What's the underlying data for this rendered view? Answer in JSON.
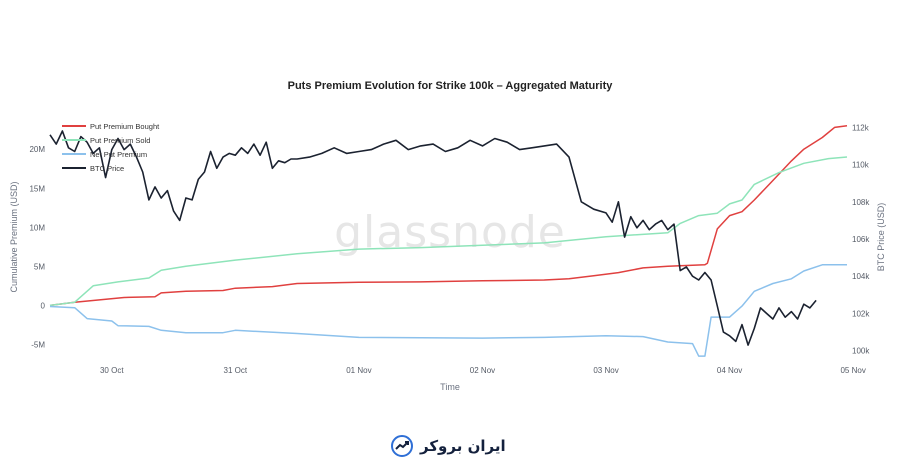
{
  "chart_data": {
    "type": "line",
    "title": "Puts Premium Evolution for Strike 100k – Aggregated Maturity",
    "xlabel": "Time",
    "ylabel_left": "Cumulative Premium (USD)",
    "ylabel_right": "BTC Price (USD)",
    "watermark": "glassnode",
    "x_range": [
      0,
      6.45
    ],
    "x_ticks": [
      {
        "x": 0.5,
        "label": "30 Oct"
      },
      {
        "x": 1.5,
        "label": "31 Oct"
      },
      {
        "x": 2.5,
        "label": "01 Nov"
      },
      {
        "x": 3.5,
        "label": "02 Nov"
      },
      {
        "x": 4.5,
        "label": "03 Nov"
      },
      {
        "x": 5.5,
        "label": "04 Nov"
      },
      {
        "x": 6.5,
        "label": "05 Nov"
      }
    ],
    "y_left_range": [
      -7000000,
      24000000
    ],
    "y_left_ticks": [
      {
        "v": -5000000,
        "label": "-5M"
      },
      {
        "v": 0,
        "label": "0"
      },
      {
        "v": 5000000,
        "label": "5M"
      },
      {
        "v": 10000000,
        "label": "10M"
      },
      {
        "v": 15000000,
        "label": "15M"
      },
      {
        "v": 20000000,
        "label": "20M"
      }
    ],
    "y_right_range": [
      99500,
      112500
    ],
    "y_right_ticks": [
      {
        "v": 100000,
        "label": "100k"
      },
      {
        "v": 102000,
        "label": "102k"
      },
      {
        "v": 104000,
        "label": "104k"
      },
      {
        "v": 106000,
        "label": "106k"
      },
      {
        "v": 108000,
        "label": "108k"
      },
      {
        "v": 110000,
        "label": "110k"
      },
      {
        "v": 112000,
        "label": "112k"
      }
    ],
    "legend_position": "top-left",
    "series": [
      {
        "name": "Put Premium Bought",
        "color": "#e0403f",
        "axis": "left",
        "points": [
          [
            0,
            0
          ],
          [
            0.2,
            400000
          ],
          [
            0.4,
            700000
          ],
          [
            0.6,
            1000000
          ],
          [
            0.85,
            1100000
          ],
          [
            0.9,
            1600000
          ],
          [
            1.1,
            1800000
          ],
          [
            1.4,
            1900000
          ],
          [
            1.5,
            2200000
          ],
          [
            1.8,
            2400000
          ],
          [
            2.0,
            2800000
          ],
          [
            2.5,
            2950000
          ],
          [
            3.0,
            3000000
          ],
          [
            3.5,
            3150000
          ],
          [
            4.0,
            3250000
          ],
          [
            4.2,
            3400000
          ],
          [
            4.4,
            3800000
          ],
          [
            4.6,
            4200000
          ],
          [
            4.8,
            4800000
          ],
          [
            5.0,
            5000000
          ],
          [
            5.3,
            5200000
          ],
          [
            5.32,
            5400000
          ],
          [
            5.4,
            9800000
          ],
          [
            5.5,
            11500000
          ],
          [
            5.6,
            12000000
          ],
          [
            5.7,
            13500000
          ],
          [
            5.85,
            16000000
          ],
          [
            6.0,
            18500000
          ],
          [
            6.1,
            20000000
          ],
          [
            6.25,
            21500000
          ],
          [
            6.35,
            22800000
          ],
          [
            6.45,
            23000000
          ]
        ]
      },
      {
        "name": "Put Premium Sold",
        "color": "#8ee4b9",
        "axis": "left",
        "points": [
          [
            0,
            0
          ],
          [
            0.2,
            400000
          ],
          [
            0.35,
            2500000
          ],
          [
            0.55,
            3000000
          ],
          [
            0.8,
            3500000
          ],
          [
            0.9,
            4500000
          ],
          [
            1.1,
            5000000
          ],
          [
            1.5,
            5800000
          ],
          [
            2.0,
            6600000
          ],
          [
            2.5,
            7200000
          ],
          [
            3.0,
            7400000
          ],
          [
            3.5,
            7700000
          ],
          [
            4.0,
            8000000
          ],
          [
            4.5,
            8800000
          ],
          [
            5.0,
            9300000
          ],
          [
            5.1,
            10500000
          ],
          [
            5.25,
            11500000
          ],
          [
            5.4,
            11800000
          ],
          [
            5.5,
            13000000
          ],
          [
            5.6,
            13500000
          ],
          [
            5.7,
            15500000
          ],
          [
            5.9,
            17000000
          ],
          [
            6.1,
            18200000
          ],
          [
            6.3,
            18800000
          ],
          [
            6.45,
            19000000
          ]
        ]
      },
      {
        "name": "Net Put Premium",
        "color": "#8cc1ec",
        "axis": "left",
        "points": [
          [
            0,
            -150000
          ],
          [
            0.2,
            -300000
          ],
          [
            0.3,
            -1700000
          ],
          [
            0.5,
            -2000000
          ],
          [
            0.55,
            -2600000
          ],
          [
            0.8,
            -2700000
          ],
          [
            0.9,
            -3200000
          ],
          [
            1.1,
            -3500000
          ],
          [
            1.4,
            -3500000
          ],
          [
            1.5,
            -3200000
          ],
          [
            2.0,
            -3600000
          ],
          [
            2.5,
            -4100000
          ],
          [
            3.0,
            -4150000
          ],
          [
            3.5,
            -4200000
          ],
          [
            4.0,
            -4100000
          ],
          [
            4.5,
            -3900000
          ],
          [
            4.8,
            -4000000
          ],
          [
            5.0,
            -4700000
          ],
          [
            5.2,
            -4900000
          ],
          [
            5.25,
            -6500000
          ],
          [
            5.3,
            -6500000
          ],
          [
            5.35,
            -1500000
          ],
          [
            5.5,
            -1500000
          ],
          [
            5.6,
            -100000
          ],
          [
            5.7,
            1800000
          ],
          [
            5.85,
            2800000
          ],
          [
            6.0,
            3400000
          ],
          [
            6.1,
            4400000
          ],
          [
            6.25,
            5200000
          ],
          [
            6.45,
            5200000
          ]
        ]
      },
      {
        "name": "BTC Price",
        "color": "#1b2230",
        "axis": "right",
        "points": [
          [
            0,
            111600
          ],
          [
            0.05,
            111100
          ],
          [
            0.1,
            111800
          ],
          [
            0.15,
            110900
          ],
          [
            0.2,
            110700
          ],
          [
            0.25,
            111500
          ],
          [
            0.3,
            111200
          ],
          [
            0.35,
            110600
          ],
          [
            0.4,
            110900
          ],
          [
            0.45,
            109300
          ],
          [
            0.5,
            110800
          ],
          [
            0.55,
            111400
          ],
          [
            0.6,
            110800
          ],
          [
            0.65,
            111100
          ],
          [
            0.7,
            110400
          ],
          [
            0.75,
            109600
          ],
          [
            0.8,
            108100
          ],
          [
            0.85,
            108800
          ],
          [
            0.9,
            108200
          ],
          [
            0.95,
            108600
          ],
          [
            1.0,
            107500
          ],
          [
            1.05,
            107000
          ],
          [
            1.1,
            108200
          ],
          [
            1.15,
            108100
          ],
          [
            1.2,
            109200
          ],
          [
            1.25,
            109600
          ],
          [
            1.3,
            110700
          ],
          [
            1.35,
            109800
          ],
          [
            1.4,
            110400
          ],
          [
            1.45,
            110600
          ],
          [
            1.5,
            110500
          ],
          [
            1.55,
            110900
          ],
          [
            1.6,
            110600
          ],
          [
            1.65,
            111100
          ],
          [
            1.7,
            110500
          ],
          [
            1.75,
            111200
          ],
          [
            1.8,
            109800
          ],
          [
            1.85,
            110200
          ],
          [
            1.9,
            110100
          ],
          [
            1.95,
            110300
          ],
          [
            2.0,
            110300
          ],
          [
            2.1,
            110400
          ],
          [
            2.2,
            110600
          ],
          [
            2.3,
            110900
          ],
          [
            2.4,
            110600
          ],
          [
            2.5,
            110700
          ],
          [
            2.6,
            110800
          ],
          [
            2.7,
            111100
          ],
          [
            2.8,
            111300
          ],
          [
            2.9,
            110800
          ],
          [
            3.0,
            111000
          ],
          [
            3.1,
            111100
          ],
          [
            3.2,
            110700
          ],
          [
            3.3,
            110900
          ],
          [
            3.4,
            111300
          ],
          [
            3.5,
            111000
          ],
          [
            3.6,
            111400
          ],
          [
            3.7,
            111200
          ],
          [
            3.8,
            110800
          ],
          [
            3.9,
            110900
          ],
          [
            4.0,
            111000
          ],
          [
            4.1,
            111100
          ],
          [
            4.2,
            110400
          ],
          [
            4.3,
            108000
          ],
          [
            4.4,
            107600
          ],
          [
            4.5,
            107400
          ],
          [
            4.55,
            106900
          ],
          [
            4.6,
            108000
          ],
          [
            4.65,
            106100
          ],
          [
            4.7,
            107200
          ],
          [
            4.75,
            106600
          ],
          [
            4.8,
            107000
          ],
          [
            4.85,
            106500
          ],
          [
            4.9,
            106800
          ],
          [
            4.95,
            107000
          ],
          [
            5.0,
            106500
          ],
          [
            5.05,
            106800
          ],
          [
            5.1,
            104300
          ],
          [
            5.15,
            104500
          ],
          [
            5.2,
            104000
          ],
          [
            5.25,
            103800
          ],
          [
            5.3,
            104200
          ],
          [
            5.35,
            103800
          ],
          [
            5.4,
            102400
          ],
          [
            5.45,
            101000
          ],
          [
            5.5,
            100800
          ],
          [
            5.55,
            100500
          ],
          [
            5.6,
            101400
          ],
          [
            5.65,
            100300
          ],
          [
            5.7,
            101200
          ],
          [
            5.75,
            102300
          ],
          [
            5.8,
            102000
          ],
          [
            5.85,
            101700
          ],
          [
            5.9,
            102300
          ],
          [
            5.95,
            101800
          ],
          [
            6.0,
            102100
          ],
          [
            6.05,
            101700
          ],
          [
            6.1,
            102500
          ],
          [
            6.15,
            102300
          ],
          [
            6.2,
            102700
          ]
        ]
      }
    ]
  },
  "branding": {
    "name": "ایران بروکر"
  }
}
